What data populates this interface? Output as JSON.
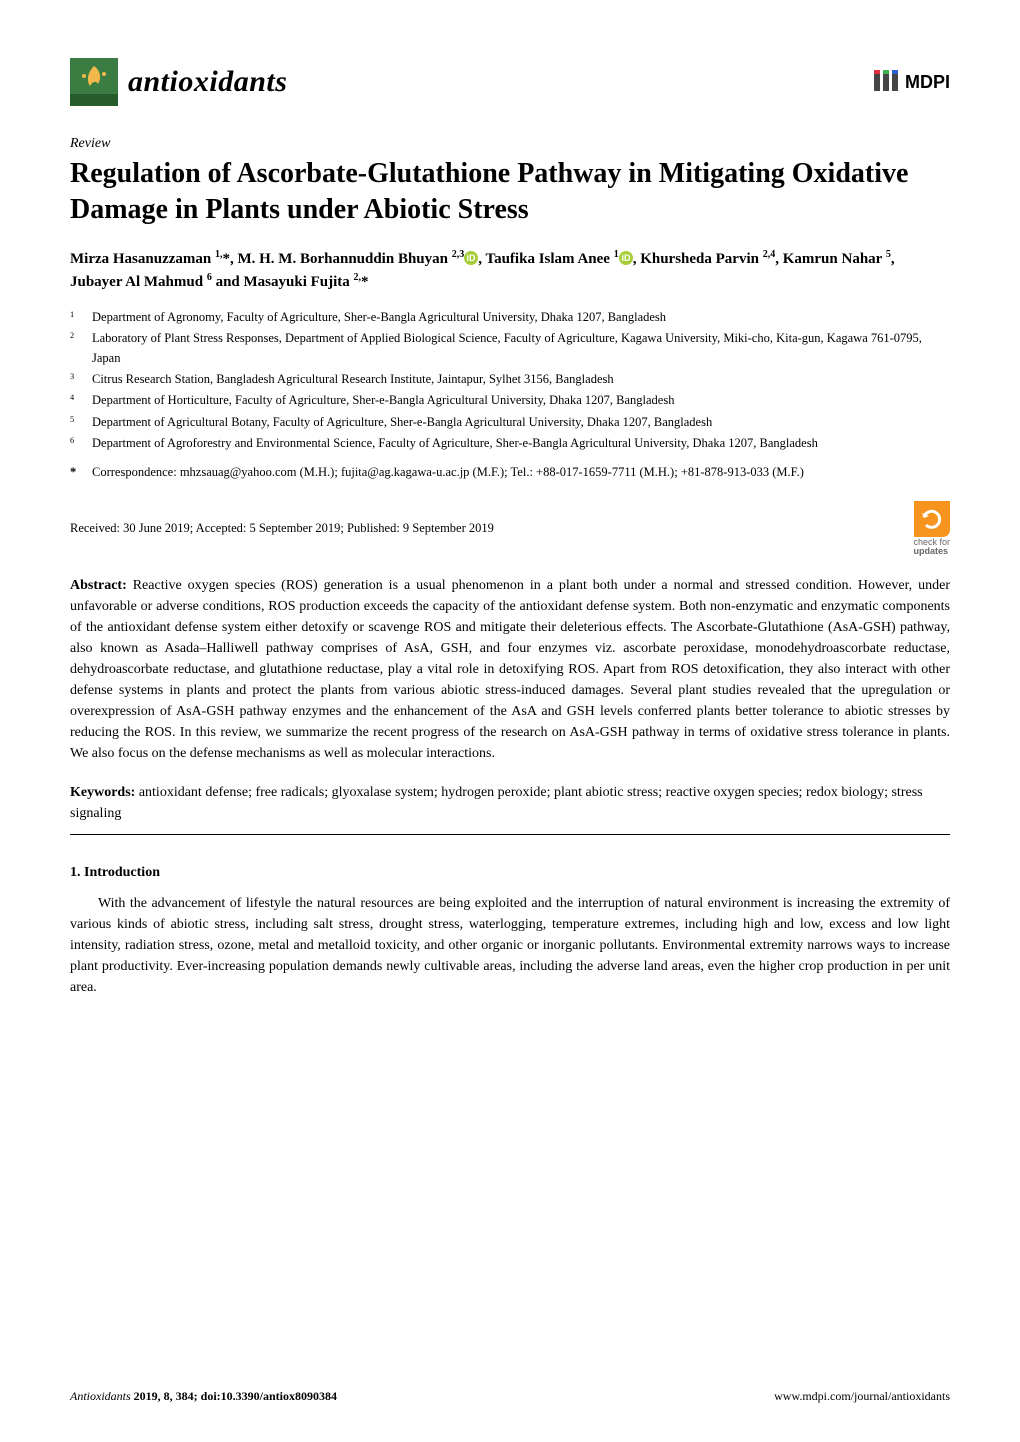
{
  "journal": {
    "name": "antioxidants",
    "logo_bg": "#3b7c42",
    "logo_accent": "#f2b84b"
  },
  "publisher": {
    "name": "MDPI",
    "color": "#454545"
  },
  "article_type": "Review",
  "title": "Regulation of Ascorbate-Glutathione Pathway in Mitigating Oxidative Damage in Plants under Abiotic Stress",
  "authors_html": "Mirza Hasanuzzaman <sup>1,</sup>*, M. H. M. Borhannuddin Bhuyan <sup>2,3</sup>{ORCID}, Taufika Islam Anee <sup>1</sup>{ORCID}, Khursheda Parvin <sup>2,4</sup>, Kamrun Nahar <sup>5</sup>, Jubayer Al Mahmud <sup>6</sup> and Masayuki Fujita <sup>2,</sup>*",
  "affiliations": [
    {
      "n": "1",
      "text": "Department of Agronomy, Faculty of Agriculture, Sher-e-Bangla Agricultural University, Dhaka 1207, Bangladesh"
    },
    {
      "n": "2",
      "text": "Laboratory of Plant Stress Responses, Department of Applied Biological Science, Faculty of Agriculture, Kagawa University, Miki-cho, Kita-gun, Kagawa 761-0795, Japan"
    },
    {
      "n": "3",
      "text": "Citrus Research Station, Bangladesh Agricultural Research Institute, Jaintapur, Sylhet 3156, Bangladesh"
    },
    {
      "n": "4",
      "text": "Department of Horticulture, Faculty of Agriculture, Sher-e-Bangla Agricultural University, Dhaka 1207, Bangladesh"
    },
    {
      "n": "5",
      "text": "Department of Agricultural Botany, Faculty of Agriculture, Sher-e-Bangla Agricultural University, Dhaka 1207, Bangladesh"
    },
    {
      "n": "6",
      "text": "Department of Agroforestry and Environmental Science, Faculty of Agriculture, Sher-e-Bangla Agricultural University, Dhaka 1207, Bangladesh"
    }
  ],
  "correspondence": "Correspondence: mhzsauag@yahoo.com (M.H.); fujita@ag.kagawa-u.ac.jp (M.F.); Tel.: +88-017-1659-7711 (M.H.); +81-878-913-033 (M.F.)",
  "dates": "Received: 30 June 2019; Accepted: 5 September 2019; Published: 9 September 2019",
  "check_updates": {
    "line1": "check for",
    "line2": "updates",
    "bg": "#f7941e",
    "fg": "#ffffff"
  },
  "abstract_label": "Abstract:",
  "abstract": "Reactive oxygen species (ROS) generation is a usual phenomenon in a plant both under a normal and stressed condition. However, under unfavorable or adverse conditions, ROS production exceeds the capacity of the antioxidant defense system. Both non-enzymatic and enzymatic components of the antioxidant defense system either detoxify or scavenge ROS and mitigate their deleterious effects. The Ascorbate-Glutathione (AsA-GSH) pathway, also known as Asada–Halliwell pathway comprises of AsA, GSH, and four enzymes viz. ascorbate peroxidase, monodehydroascorbate reductase, dehydroascorbate reductase, and glutathione reductase, play a vital role in detoxifying ROS. Apart from ROS detoxification, they also interact with other defense systems in plants and protect the plants from various abiotic stress-induced damages. Several plant studies revealed that the upregulation or overexpression of AsA-GSH pathway enzymes and the enhancement of the AsA and GSH levels conferred plants better tolerance to abiotic stresses by reducing the ROS. In this review, we summarize the recent progress of the research on AsA-GSH pathway in terms of oxidative stress tolerance in plants. We also focus on the defense mechanisms as well as molecular interactions.",
  "keywords_label": "Keywords:",
  "keywords": "antioxidant defense; free radicals; glyoxalase system; hydrogen peroxide; plant abiotic stress; reactive oxygen species; redox biology; stress signaling",
  "section_heading": "1. Introduction",
  "body_paragraphs": [
    "With the advancement of lifestyle the natural resources are being exploited and the interruption of natural environment is increasing the extremity of various kinds of abiotic stress, including salt stress, drought stress, waterlogging, temperature extremes, including high and low, excess and low light intensity, radiation stress, ozone, metal and metalloid toxicity, and other organic or inorganic pollutants. Environmental extremity narrows ways to increase plant productivity. Ever-increasing population demands newly cultivable areas, including the adverse land areas, even the higher crop production in per unit area."
  ],
  "footer": {
    "left_italic": "Antioxidants ",
    "left_rest": "2019, 8, 384; doi:10.3390/antiox8090384",
    "right": "www.mdpi.com/journal/antioxidants"
  },
  "orcid": {
    "bg": "#a6ce39",
    "fg": "#ffffff"
  }
}
